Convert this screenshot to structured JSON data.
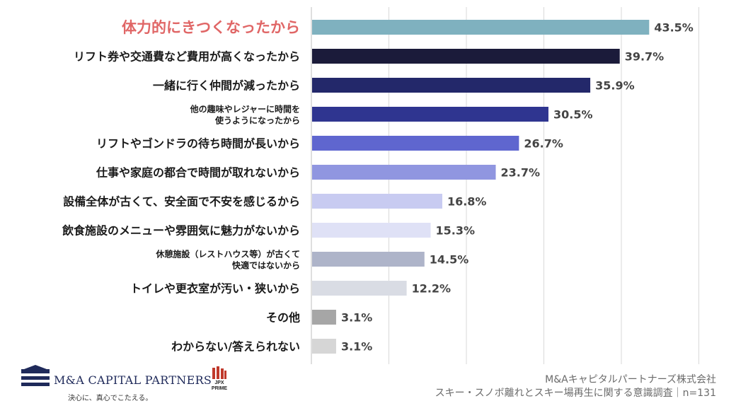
{
  "chart_data": {
    "type": "bar",
    "orientation": "horizontal",
    "title": "",
    "xlabel": "",
    "ylabel": "",
    "xlim": [
      0,
      50
    ],
    "grid": true,
    "categories": [
      [
        "体力的にきつくなったから"
      ],
      [
        "リフト券や交通費など費用が高くなったから"
      ],
      [
        "一緒に行く仲間が減ったから"
      ],
      [
        "他の趣味やレジャーに時間を",
        "使うようになったから"
      ],
      [
        "リフトやゴンドラの待ち時間が長いから"
      ],
      [
        "仕事や家庭の都合で時間が取れないから"
      ],
      [
        "設備全体が古くて、安全面で不安を感じるから"
      ],
      [
        "飲食施設のメニューや雰囲気に魅力がないから"
      ],
      [
        "休憩施設（レストハウス等）が古くて",
        "快適ではないから"
      ],
      [
        "トイレや更衣室が汚い・狭いから"
      ],
      [
        "その他"
      ],
      [
        "わからない/答えられない"
      ]
    ],
    "values": [
      43.5,
      39.7,
      35.9,
      30.5,
      26.7,
      23.7,
      16.8,
      15.3,
      14.5,
      12.2,
      3.1,
      3.1
    ],
    "value_labels": [
      "43.5%",
      "39.7%",
      "35.9%",
      "30.5%",
      "26.7%",
      "23.7%",
      "16.8%",
      "15.3%",
      "14.5%",
      "12.2%",
      "3.1%",
      "3.1%"
    ],
    "colors": [
      "#7fb1bf",
      "#1b1b3a",
      "#23286a",
      "#2f3590",
      "#5f66cf",
      "#9096e0",
      "#c8cbf1",
      "#dfe1f6",
      "#aeb4c9",
      "#d9dce4",
      "#a6a6a6",
      "#d6d6d6"
    ],
    "highlight_index": 0,
    "highlight_color": "#e06666"
  },
  "footer": {
    "logo_name": "M&A CAPITAL PARTNERS",
    "logo_tagline": "決心に、真心でこたえる。",
    "jpx_line1": "JPX",
    "jpx_line2": "PRIME",
    "source_line1": "M&Aキャピタルパートナーズ株式会社",
    "source_line2": "スキー・スノボ離れとスキー場再生に関する意識調査｜n=131"
  }
}
